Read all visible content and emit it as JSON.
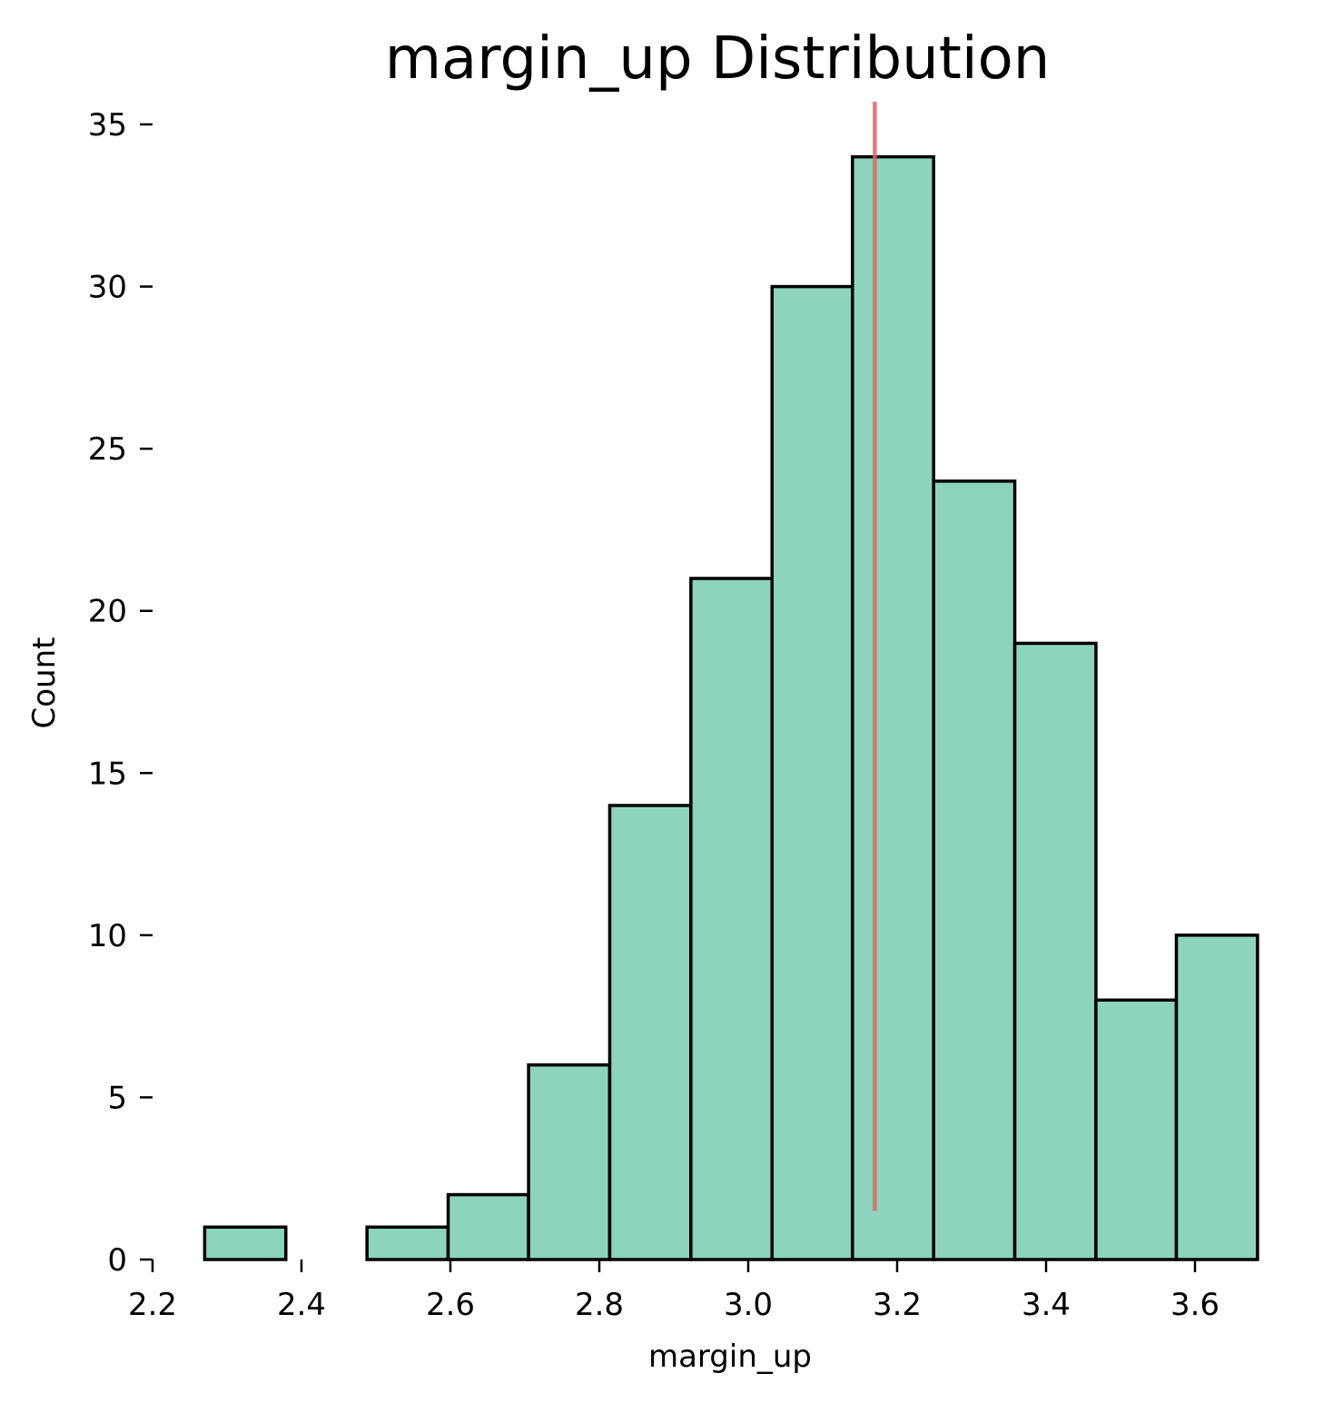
{
  "chart_data": {
    "type": "bar",
    "subtype": "histogram",
    "title": "margin_up Distribution",
    "xlabel": "margin_up",
    "ylabel": "Count",
    "xlim": [
      2.2,
      3.68
    ],
    "ylim": [
      0,
      35.7
    ],
    "xticks": [
      "2.2",
      "2.4",
      "2.6",
      "2.8",
      "3.0",
      "3.2",
      "3.4",
      "3.6"
    ],
    "yticks": [
      "0",
      "5",
      "10",
      "15",
      "20",
      "25",
      "30",
      "35"
    ],
    "bins": [
      {
        "x0": 2.27,
        "x1": 2.379,
        "count": 1
      },
      {
        "x0": 2.379,
        "x1": 2.488,
        "count": 0
      },
      {
        "x0": 2.488,
        "x1": 2.597,
        "count": 1
      },
      {
        "x0": 2.597,
        "x1": 2.705,
        "count": 2
      },
      {
        "x0": 2.705,
        "x1": 2.814,
        "count": 6
      },
      {
        "x0": 2.814,
        "x1": 2.923,
        "count": 14
      },
      {
        "x0": 2.923,
        "x1": 3.032,
        "count": 21
      },
      {
        "x0": 3.032,
        "x1": 3.14,
        "count": 30
      },
      {
        "x0": 3.14,
        "x1": 3.249,
        "count": 34
      },
      {
        "x0": 3.249,
        "x1": 3.358,
        "count": 24
      },
      {
        "x0": 3.358,
        "x1": 3.467,
        "count": 19
      },
      {
        "x0": 3.467,
        "x1": 3.575,
        "count": 8
      },
      {
        "x0": 3.575,
        "x1": 3.684,
        "count": 10
      }
    ],
    "reference_line": {
      "x": 3.17,
      "y0": 1.5,
      "y1": 35.7,
      "color": "#e06666"
    },
    "bar_color": "#8dd3bd",
    "edge_color": "#000000",
    "grid": false,
    "legend": "none"
  }
}
